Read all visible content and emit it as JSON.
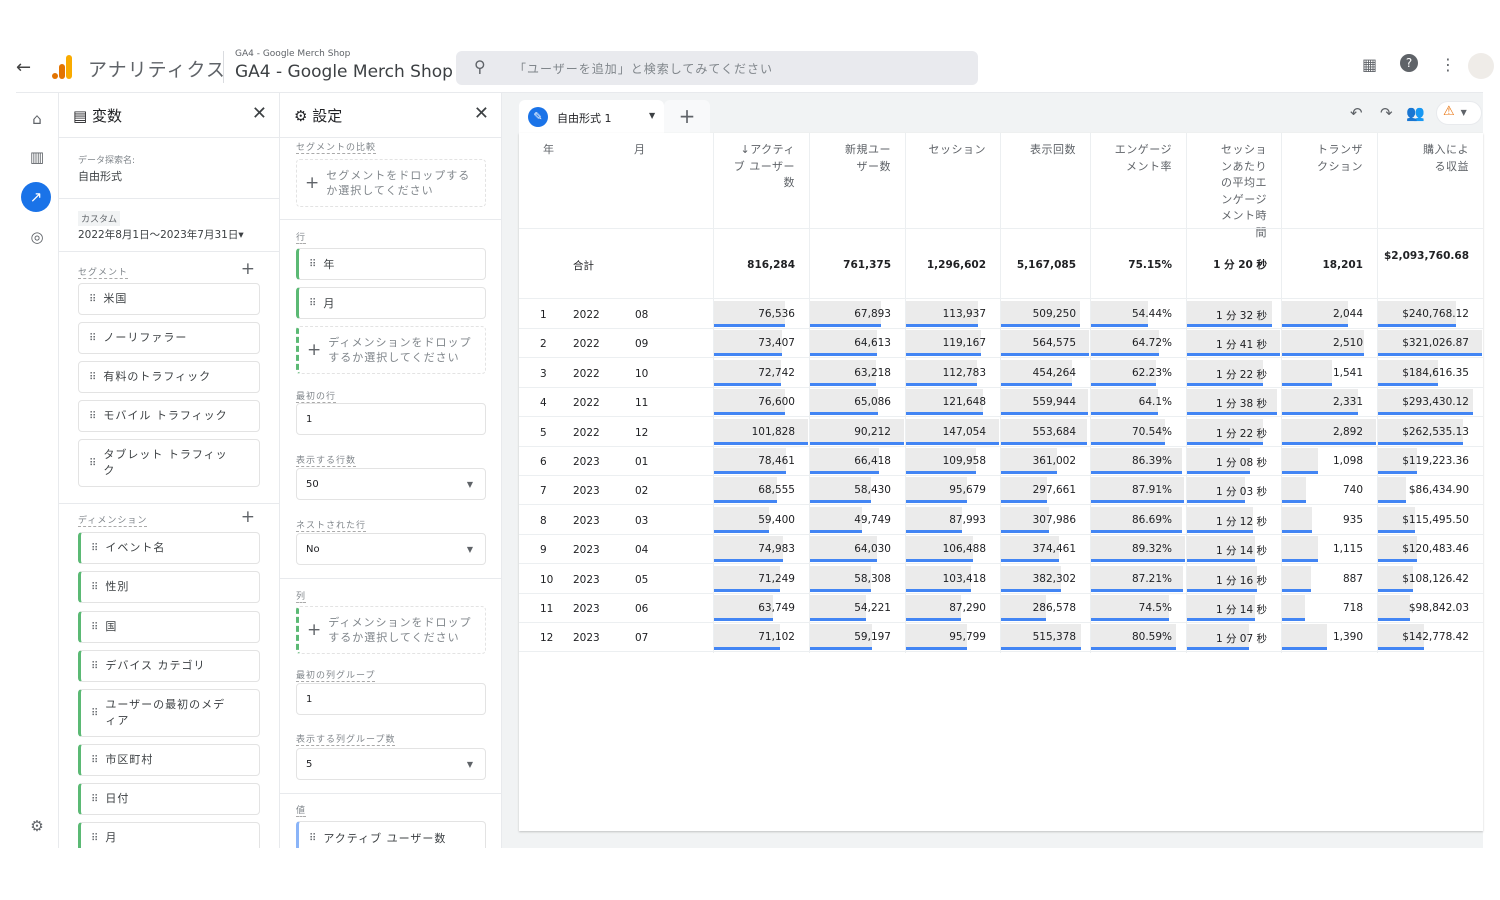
{
  "header": {
    "back_icon": "arrow-left-icon",
    "app_name": "アナリティクス",
    "account_small": "GA4 - Google Merch Shop",
    "account_big": "GA4 - Google Merch Shop",
    "search_placeholder": "「ユーザーを追加」と検索してみてください",
    "icons": [
      "apps-grid-icon",
      "help-icon",
      "more-vert-icon"
    ]
  },
  "rail": {
    "items": [
      "home-icon",
      "reports-icon",
      "explore-icon",
      "advertising-icon"
    ],
    "active": "explore-icon",
    "bottom": "settings-gear-icon"
  },
  "variables": {
    "title": "変数",
    "name_label": "データ探索名:",
    "name_value": "自由形式",
    "date_badge": "カスタム",
    "date_range": "2022年8月1日～2023年7月31日",
    "segments_label": "セグメント",
    "segments": [
      "米国",
      "ノーリファラー",
      "有料のトラフィック",
      "モバイル トラフィック",
      "タブレット トラフィック"
    ],
    "dimensions_label": "ディメンション",
    "dimensions": [
      "イベント名",
      "性別",
      "国",
      "デバイス カテゴリ",
      "ユーザーの最初のメディア",
      "市区町村",
      "日付",
      "月"
    ]
  },
  "settings": {
    "title": "設定",
    "segment_compare_label": "セグメントの比較",
    "segment_drop": "セグメントをドロップするか選択してください",
    "rows_label": "行",
    "rows": [
      "年",
      "月"
    ],
    "rows_drop": "ディメンションをドロップするか選択してください",
    "first_row_label": "最初の行",
    "first_row": "1",
    "show_rows_label": "表示する行数",
    "show_rows": "50",
    "nested_label": "ネストされた行",
    "nested": "No",
    "columns_label": "列",
    "columns_drop": "ディメンションをドロップするか選択してください",
    "first_col_group_label": "最初の列グループ",
    "first_col_group": "1",
    "show_col_groups_label": "表示する列グループ数",
    "show_col_groups": "5",
    "values_label": "値",
    "values": [
      "アクティブ ユーザー数"
    ]
  },
  "tabs": [
    {
      "label": "自由形式 1"
    }
  ],
  "toolbar": {
    "icons": [
      "undo-icon",
      "redo-icon",
      "share-icon",
      "warning-icon"
    ]
  },
  "table": {
    "dim_headers": [
      "年",
      "月"
    ],
    "metric_headers": [
      "↓アクティブ ユーザー数",
      "新規ユーザー数",
      "セッション",
      "表示回数",
      "エンゲージメント率",
      "セッションあたりの平均エンゲージメント時間",
      "トランザクション",
      "購入による収益"
    ],
    "total_label": "合計",
    "totals": [
      "816,284",
      "761,375",
      "1,296,602",
      "5,167,085",
      "75.15%",
      "1 分 20 秒",
      "18,201",
      "$2,093,760.68"
    ],
    "rows": [
      [
        "1",
        "2022",
        "08",
        "76,536",
        "67,893",
        "113,937",
        "509,250",
        "54.44%",
        "1 分 32 秒",
        "2,044",
        "$240,768.12"
      ],
      [
        "2",
        "2022",
        "09",
        "73,407",
        "64,613",
        "119,167",
        "564,575",
        "64.72%",
        "1 分 41 秒",
        "2,510",
        "$321,026.87"
      ],
      [
        "3",
        "2022",
        "10",
        "72,742",
        "63,218",
        "112,783",
        "454,264",
        "62.23%",
        "1 分 22 秒",
        "1,541",
        "$184,616.35"
      ],
      [
        "4",
        "2022",
        "11",
        "76,600",
        "65,086",
        "121,648",
        "559,944",
        "64.1%",
        "1 分 38 秒",
        "2,331",
        "$293,430.12"
      ],
      [
        "5",
        "2022",
        "12",
        "101,828",
        "90,212",
        "147,054",
        "553,684",
        "70.54%",
        "1 分 22 秒",
        "2,892",
        "$262,535.13"
      ],
      [
        "6",
        "2023",
        "01",
        "78,461",
        "66,418",
        "109,958",
        "361,002",
        "86.39%",
        "1 分 08 秒",
        "1,098",
        "$119,223.36"
      ],
      [
        "7",
        "2023",
        "02",
        "68,555",
        "58,430",
        "95,679",
        "297,661",
        "87.91%",
        "1 分 03 秒",
        "740",
        "$86,434.90"
      ],
      [
        "8",
        "2023",
        "03",
        "59,400",
        "49,749",
        "87,993",
        "307,986",
        "86.69%",
        "1 分 12 秒",
        "935",
        "$115,495.50"
      ],
      [
        "9",
        "2023",
        "04",
        "74,983",
        "64,030",
        "106,488",
        "374,461",
        "89.32%",
        "1 分 14 秒",
        "1,115",
        "$120,483.46"
      ],
      [
        "10",
        "2023",
        "05",
        "71,249",
        "58,308",
        "103,418",
        "382,302",
        "87.21%",
        "1 分 16 秒",
        "887",
        "$108,126.42"
      ],
      [
        "11",
        "2023",
        "06",
        "63,749",
        "54,221",
        "87,290",
        "286,578",
        "74.5%",
        "1 分 14 秒",
        "718",
        "$98,842.03"
      ],
      [
        "12",
        "2023",
        "07",
        "71,102",
        "59,197",
        "95,799",
        "515,378",
        "80.59%",
        "1 分 07 秒",
        "1,390",
        "$142,778.42"
      ]
    ]
  },
  "colors": {
    "accent": "#1a73e8",
    "bar": "#4285f4",
    "dimension": "#5bb974",
    "metric": "#8ab4f8"
  }
}
